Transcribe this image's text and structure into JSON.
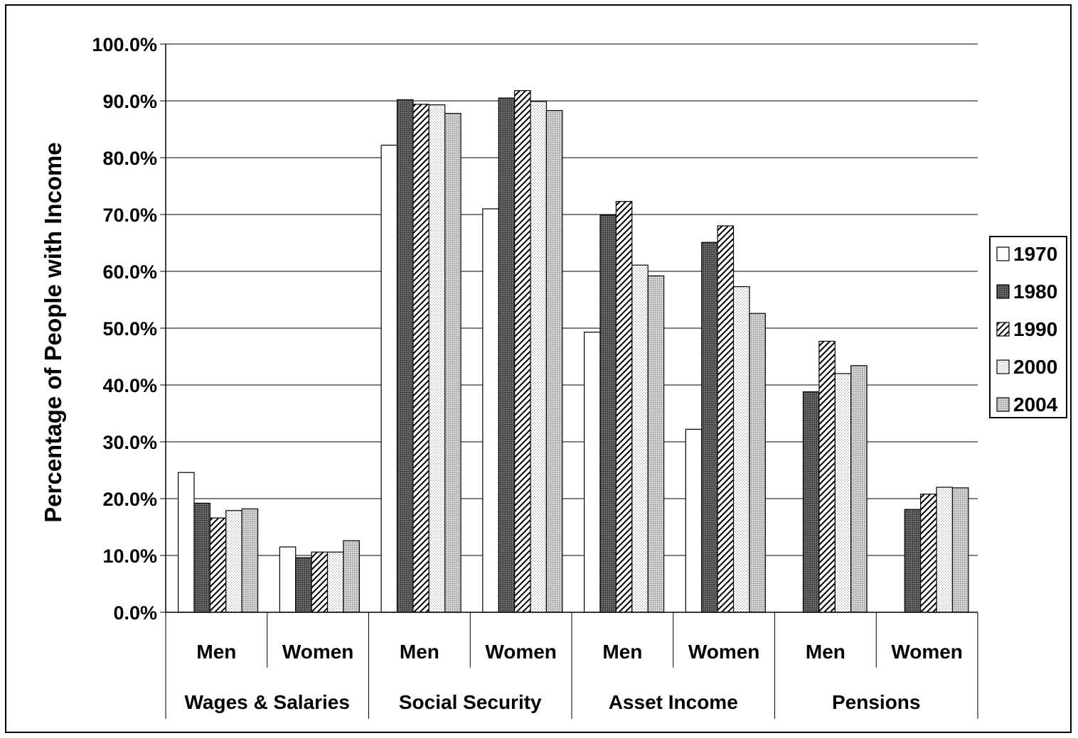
{
  "chart_data": {
    "type": "bar",
    "ylabel": "Percentage of People with Income",
    "ylim": [
      0,
      100
    ],
    "y_ticks": [
      "0.0%",
      "10.0%",
      "20.0%",
      "30.0%",
      "40.0%",
      "50.0%",
      "60.0%",
      "70.0%",
      "80.0%",
      "90.0%",
      "100.0%"
    ],
    "grid": "horizontal",
    "legend_position": "right",
    "groups": [
      "Wages & Salaries",
      "Social Security",
      "Asset Income",
      "Pensions"
    ],
    "subcategories": [
      "Men",
      "Women"
    ],
    "categories": [
      "Wages & Salaries - Men",
      "Wages & Salaries - Women",
      "Social Security - Men",
      "Social Security - Women",
      "Asset Income - Men",
      "Asset Income - Women",
      "Pensions - Men",
      "Pensions - Women"
    ],
    "series": [
      {
        "name": "1970",
        "pattern": "white",
        "values": [
          24.6,
          11.5,
          82.2,
          71.0,
          49.3,
          32.2,
          null,
          null
        ]
      },
      {
        "name": "1980",
        "pattern": "dark-dots",
        "values": [
          19.2,
          9.6,
          90.2,
          90.5,
          69.9,
          65.1,
          38.8,
          18.1
        ]
      },
      {
        "name": "1990",
        "pattern": "diagonal",
        "values": [
          16.6,
          10.6,
          89.4,
          91.8,
          72.3,
          68.0,
          47.7,
          20.8
        ]
      },
      {
        "name": "2000",
        "pattern": "light-dots",
        "values": [
          17.9,
          10.6,
          89.3,
          89.9,
          61.1,
          57.3,
          42.0,
          22.0
        ]
      },
      {
        "name": "2004",
        "pattern": "grey-dots",
        "values": [
          18.2,
          12.6,
          87.8,
          88.3,
          59.2,
          52.6,
          43.4,
          21.9
        ]
      }
    ]
  }
}
